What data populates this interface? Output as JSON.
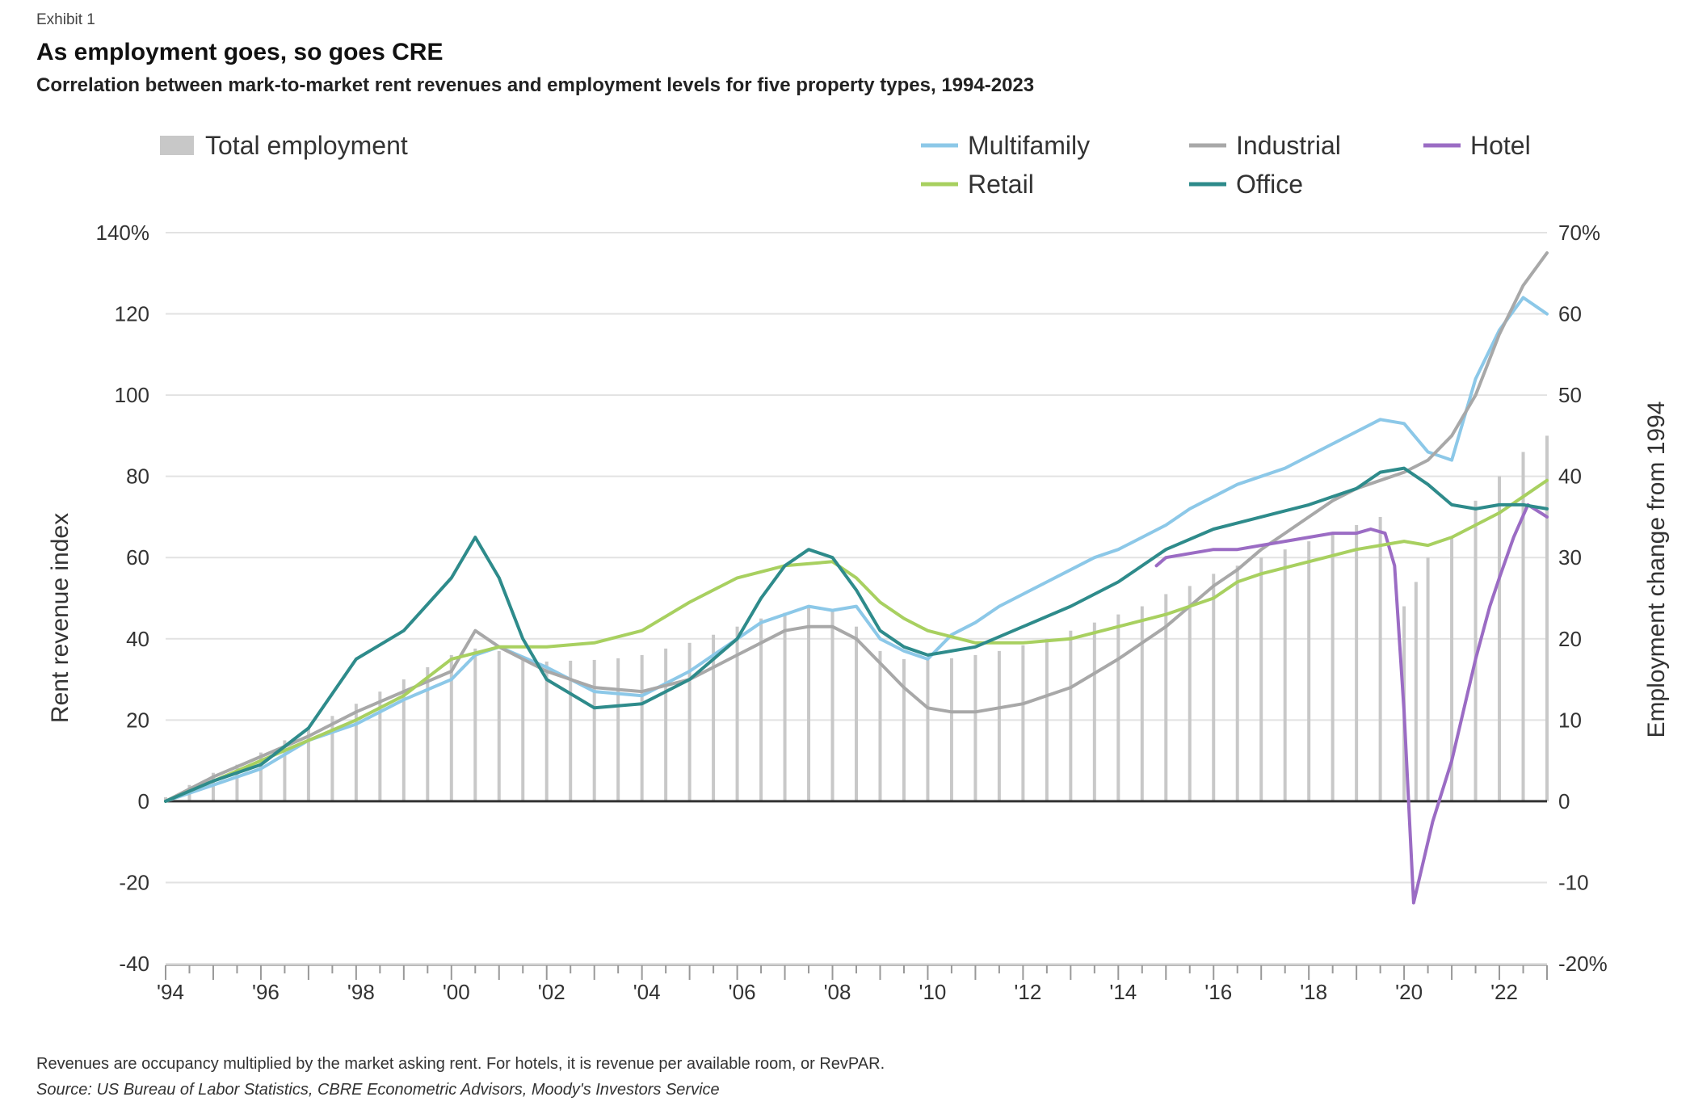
{
  "header": {
    "exhibit": "Exhibit 1",
    "title": "As employment goes, so goes CRE",
    "subtitle": "Correlation between mark-to-market rent revenues and employment levels for five property types, 1994-2023"
  },
  "footer": {
    "note": "Revenues are occupancy multiplied by the market asking rent. For hotels, it is revenue per available room, or RevPAR.",
    "source": "Source: US Bureau of Labor Statistics, CBRE Econometric Advisors, Moody's Investors Service"
  },
  "chart_data": {
    "type": "line",
    "title": "As employment goes, so goes CRE",
    "ylabel": "Rent revenue index",
    "y2label": "Employment change from 1994",
    "xlim": [
      1994,
      2023
    ],
    "ylim": [
      -40,
      140
    ],
    "y2lim": [
      -20,
      70
    ],
    "grid": true,
    "legend_position": "top",
    "x_tick_labels": [
      "'94",
      "'96",
      "'98",
      "'00",
      "'02",
      "'04",
      "'06",
      "'08",
      "'10",
      "'12",
      "'14",
      "'16",
      "'18",
      "'20",
      "'22"
    ],
    "x_tick_values": [
      1994,
      1996,
      1998,
      2000,
      2002,
      2004,
      2006,
      2008,
      2010,
      2012,
      2014,
      2016,
      2018,
      2020,
      2022
    ],
    "y_tick_labels": [
      "140%",
      "120",
      "100",
      "80",
      "60",
      "40",
      "20",
      "0",
      "-20",
      "-40"
    ],
    "y_tick_values": [
      140,
      120,
      100,
      80,
      60,
      40,
      20,
      0,
      -20,
      -40
    ],
    "y2_tick_labels": [
      "70%",
      "60",
      "50",
      "40",
      "30",
      "20",
      "10",
      "0",
      "-10",
      "-20%"
    ],
    "y2_tick_values": [
      70,
      60,
      50,
      40,
      30,
      20,
      10,
      0,
      -10,
      -20
    ],
    "bars": {
      "name": "Total employment",
      "color": "#c8c8c8",
      "x": [
        1994.0,
        1994.5,
        1995.0,
        1995.5,
        1996.0,
        1996.5,
        1997.0,
        1997.5,
        1998.0,
        1998.5,
        1999.0,
        1999.5,
        2000.0,
        2000.5,
        2001.0,
        2001.5,
        2002.0,
        2002.5,
        2003.0,
        2003.5,
        2004.0,
        2004.5,
        2005.0,
        2005.5,
        2006.0,
        2006.5,
        2007.0,
        2007.5,
        2008.0,
        2008.5,
        2009.0,
        2009.5,
        2010.0,
        2010.5,
        2011.0,
        2011.5,
        2012.0,
        2012.5,
        2013.0,
        2013.5,
        2014.0,
        2014.5,
        2015.0,
        2015.5,
        2016.0,
        2016.5,
        2017.0,
        2017.5,
        2018.0,
        2018.5,
        2019.0,
        2019.5,
        2020.0,
        2020.25,
        2020.5,
        2021.0,
        2021.5,
        2022.0,
        2022.5,
        2023.0
      ],
      "values": [
        0.5,
        2,
        3.5,
        4.5,
        6,
        7.5,
        9,
        10.5,
        12,
        13.5,
        15,
        16.5,
        18,
        18.8,
        18.5,
        17.5,
        17.2,
        17.3,
        17.4,
        17.6,
        18,
        18.8,
        19.5,
        20.5,
        21.5,
        22.5,
        23.2,
        24.0,
        23.5,
        21.5,
        18.5,
        17.5,
        17.4,
        17.6,
        18.0,
        18.5,
        19.2,
        20.0,
        21.0,
        22.0,
        23.0,
        24.0,
        25.5,
        26.5,
        28.0,
        29.0,
        30.0,
        31.0,
        32.0,
        33.0,
        34.0,
        35.0,
        24.0,
        27.0,
        30.0,
        32.5,
        37.0,
        40.0,
        43.0,
        45.0
      ]
    },
    "series": [
      {
        "name": "Multifamily",
        "color": "#8cc8e8",
        "x": [
          1994,
          1995,
          1996,
          1997,
          1998,
          1999,
          2000,
          2000.5,
          2001,
          2002,
          2003,
          2004,
          2005,
          2006,
          2006.5,
          2007,
          2007.5,
          2008,
          2008.5,
          2009,
          2009.5,
          2010,
          2010.5,
          2011,
          2011.5,
          2012,
          2012.5,
          2013,
          2013.5,
          2014,
          2014.5,
          2015,
          2015.5,
          2016,
          2016.5,
          2017,
          2017.5,
          2018,
          2018.5,
          2019,
          2019.5,
          2020,
          2020.5,
          2021,
          2021.5,
          2022,
          2022.5,
          2023
        ],
        "values": [
          0,
          4,
          8,
          15,
          19,
          25,
          30,
          36,
          38,
          33,
          27,
          26,
          32,
          40,
          44,
          46,
          48,
          47,
          48,
          40,
          37,
          35,
          41,
          44,
          48,
          51,
          54,
          57,
          60,
          62,
          65,
          68,
          72,
          75,
          78,
          80,
          82,
          85,
          88,
          91,
          94,
          93,
          86,
          84,
          104,
          116,
          124,
          120
        ]
      },
      {
        "name": "Industrial",
        "color": "#a8a8a8",
        "x": [
          1994,
          1995,
          1996,
          1997,
          1998,
          1999,
          2000,
          2000.5,
          2001,
          2002,
          2003,
          2004,
          2005,
          2006,
          2006.5,
          2007,
          2007.5,
          2008,
          2008.5,
          2009,
          2009.5,
          2010,
          2010.5,
          2011,
          2012,
          2013,
          2014,
          2015,
          2016,
          2016.5,
          2017,
          2017.5,
          2018,
          2018.5,
          2019,
          2019.5,
          2020,
          2020.5,
          2021,
          2021.5,
          2022,
          2022.5,
          2023
        ],
        "values": [
          0,
          6,
          11,
          16,
          22,
          27,
          32,
          42,
          38,
          32,
          28,
          27,
          30,
          36,
          39,
          42,
          43,
          43,
          40,
          34,
          28,
          23,
          22,
          22,
          24,
          28,
          35,
          43,
          53,
          57,
          62,
          66,
          70,
          74,
          77,
          79,
          81,
          84,
          90,
          100,
          115,
          127,
          135
        ]
      },
      {
        "name": "Hotel",
        "color": "#9b6cc4",
        "x": [
          2014.8,
          2015,
          2016,
          2016.5,
          2017,
          2017.5,
          2018,
          2018.5,
          2019,
          2019.3,
          2019.6,
          2019.8,
          2020.0,
          2020.2,
          2020.4,
          2020.6,
          2021,
          2021.5,
          2021.8,
          2022,
          2022.3,
          2022.6,
          2023
        ],
        "values": [
          58,
          60,
          62,
          62,
          63,
          64,
          65,
          66,
          66,
          67,
          66,
          58,
          22,
          -25,
          -15,
          -5,
          10,
          35,
          48,
          55,
          65,
          73,
          70
        ]
      },
      {
        "name": "Retail",
        "color": "#a8d060",
        "x": [
          1994,
          1995,
          1996,
          1997,
          1998,
          1999,
          2000,
          2001,
          2002,
          2003,
          2004,
          2005,
          2006,
          2007,
          2008,
          2008.5,
          2009,
          2009.5,
          2010,
          2011,
          2012,
          2013,
          2014,
          2015,
          2016,
          2016.5,
          2017,
          2018,
          2019,
          2020,
          2020.5,
          2021,
          2021.5,
          2022,
          2022.5,
          2023
        ],
        "values": [
          0,
          5,
          10,
          15,
          20,
          26,
          35,
          38,
          38,
          39,
          42,
          49,
          55,
          58,
          59,
          55,
          49,
          45,
          42,
          39,
          39,
          40,
          43,
          46,
          50,
          54,
          56,
          59,
          62,
          64,
          63,
          65,
          68,
          71,
          75,
          79
        ]
      },
      {
        "name": "Office",
        "color": "#2e8b8b",
        "x": [
          1994,
          1995,
          1996,
          1997,
          1998,
          1999,
          2000,
          2000.5,
          2001,
          2001.5,
          2002,
          2003,
          2004,
          2005,
          2006,
          2006.5,
          2007,
          2007.5,
          2008,
          2008.5,
          2009,
          2009.5,
          2010,
          2011,
          2012,
          2013,
          2014,
          2015,
          2016,
          2017,
          2018,
          2019,
          2019.5,
          2020,
          2020.5,
          2021,
          2021.5,
          2022,
          2022.5,
          2023
        ],
        "values": [
          0,
          5,
          9,
          18,
          35,
          42,
          55,
          65,
          55,
          40,
          30,
          23,
          24,
          30,
          40,
          50,
          58,
          62,
          60,
          52,
          42,
          38,
          36,
          38,
          43,
          48,
          54,
          62,
          67,
          70,
          73,
          77,
          81,
          82,
          78,
          73,
          72,
          73,
          73,
          72
        ]
      }
    ]
  }
}
